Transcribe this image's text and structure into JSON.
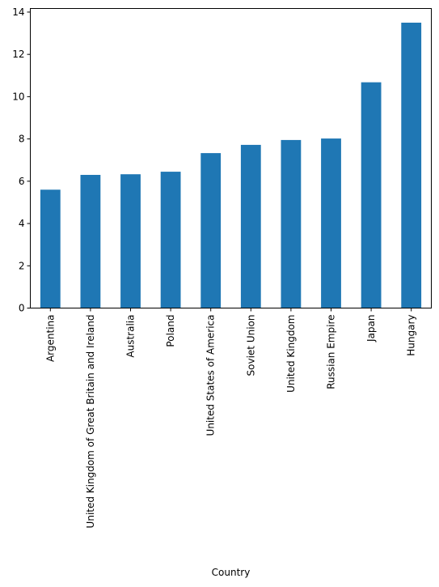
{
  "chart_data": {
    "type": "bar",
    "title": "",
    "xlabel": "Country",
    "ylabel": "",
    "categories": [
      "Argentina",
      "United Kingdom of Great Britain and Ireland",
      "Australia",
      "Poland",
      "United States of America",
      "Soviet Union",
      "United Kingdom",
      "Russian Empire",
      "Japan",
      "Hungary"
    ],
    "values": [
      5.6,
      6.3,
      6.33,
      6.45,
      7.33,
      7.72,
      7.95,
      8.02,
      10.68,
      13.5
    ],
    "ylim": [
      0,
      14.17
    ],
    "yticks": [
      0,
      2,
      4,
      6,
      8,
      10,
      12,
      14
    ],
    "grid": false,
    "legend": "none",
    "bar_color": "#1f77b4"
  }
}
